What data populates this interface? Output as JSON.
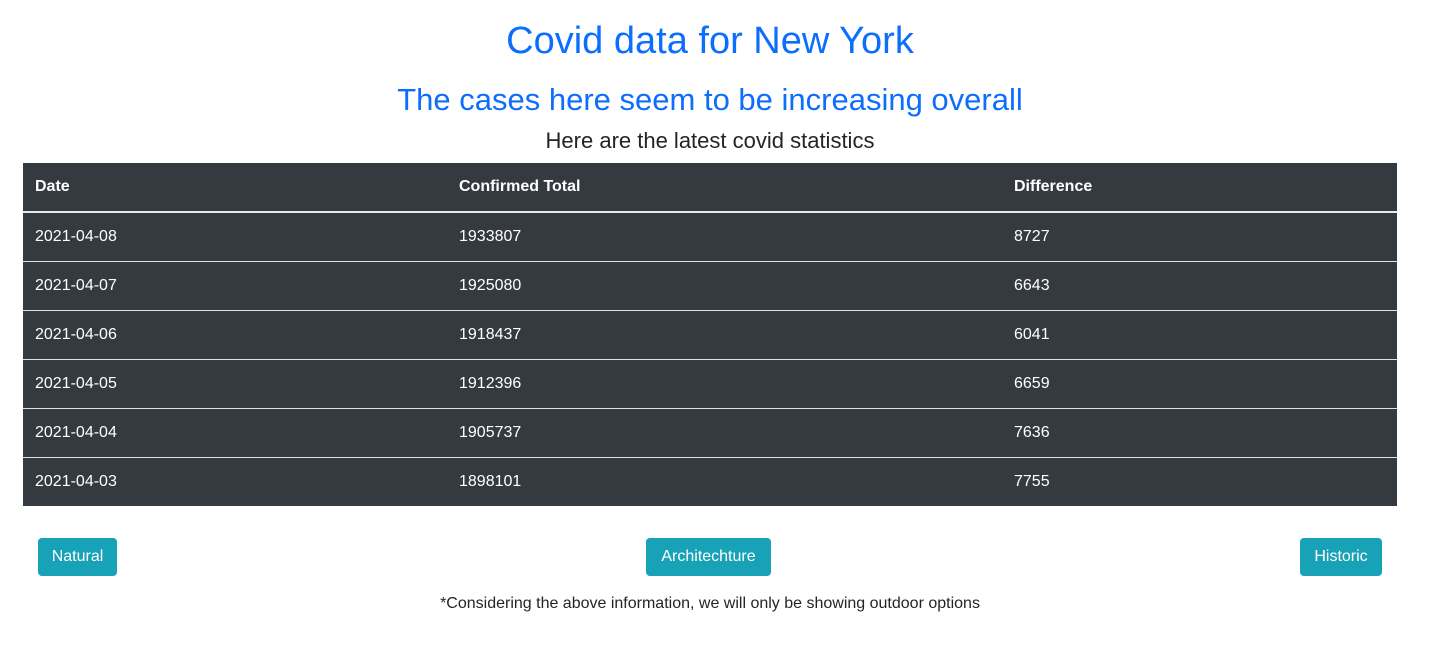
{
  "header": {
    "title": "Covid data for New York",
    "subtitle": "The cases here seem to be increasing overall",
    "lead": "Here are the latest covid statistics"
  },
  "table": {
    "columns": [
      "Date",
      "Confirmed Total",
      "Difference"
    ],
    "rows": [
      [
        "2021-04-08",
        "1933807",
        "8727"
      ],
      [
        "2021-04-07",
        "1925080",
        "6643"
      ],
      [
        "2021-04-06",
        "1918437",
        "6041"
      ],
      [
        "2021-04-05",
        "1912396",
        "6659"
      ],
      [
        "2021-04-04",
        "1905737",
        "7636"
      ],
      [
        "2021-04-03",
        "1898101",
        "7755"
      ]
    ]
  },
  "buttons": {
    "natural": "Natural",
    "architecture": "Architechture",
    "historic": "Historic"
  },
  "footer": {
    "note": "*Considering the above information, we will only be showing outdoor options"
  },
  "colors": {
    "heading": "#0d6efd",
    "table_bg": "#343a40",
    "button_bg": "#17a2b8"
  }
}
